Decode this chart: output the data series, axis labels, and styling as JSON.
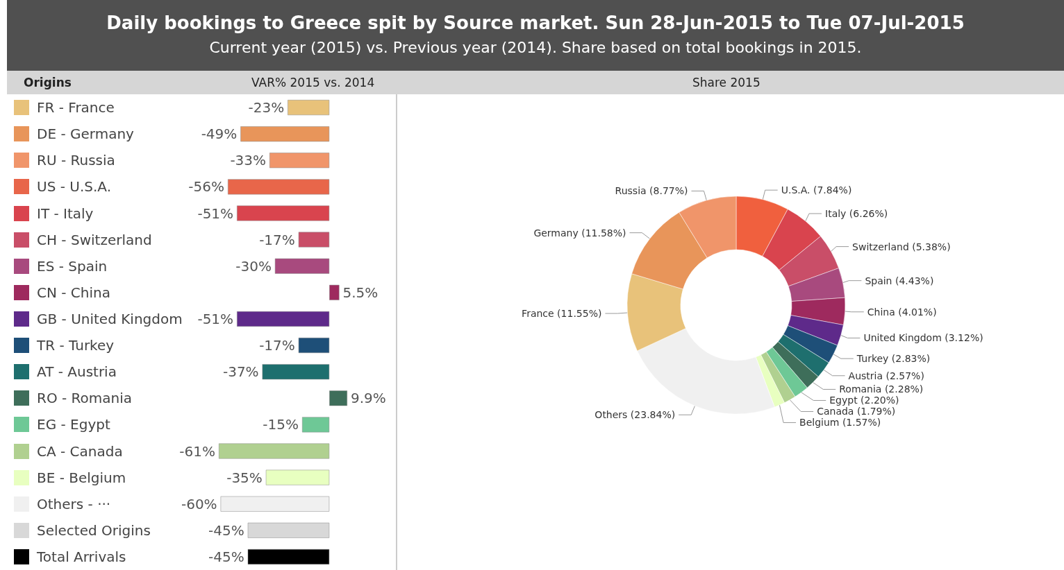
{
  "chart_data": [
    {
      "type": "bar",
      "orientation": "horizontal",
      "title": "Daily bookings to Greece spit by Source market. Sun 28-Jun-2015 to Tue 07-Jul-2015",
      "subtitle": "Current year (2015) vs. Previous year (2014). Share based on total bookings in 2015.",
      "ylabel": "Origins",
      "xlabel": "VAR% 2015 vs. 2014",
      "categories": [
        "FR - France",
        "DE - Germany",
        "RU - Russia",
        "US - U.S.A.",
        "IT - Italy",
        "CH - Switzerland",
        "ES - Spain",
        "CN - China",
        "GB - United Kingdom",
        "TR - Turkey",
        "AT - Austria",
        "RO - Romania",
        "EG - Egypt",
        "CA - Canada",
        "BE - Belgium",
        "Others - ···",
        "Selected Origins",
        "Total Arrivals"
      ],
      "values": [
        -23,
        -49,
        -33,
        -56,
        -51,
        -17,
        -30,
        5.5,
        -51,
        -17,
        -37,
        9.9,
        -15,
        -61,
        -35,
        -60,
        -45,
        -45
      ],
      "value_labels": [
        "-23%",
        "-49%",
        "-33%",
        "-56%",
        "-51%",
        "-17%",
        "-30%",
        "5.5%",
        "-51%",
        "-17%",
        "-37%",
        "9.9%",
        "-15%",
        "-61%",
        "-35%",
        "-60%",
        "-45%",
        "-45%"
      ],
      "colors": [
        "#e8c27a",
        "#e8955a",
        "#f0956a",
        "#e8664a",
        "#d9444e",
        "#c94e68",
        "#a84a7e",
        "#9e2a5e",
        "#5e2a8a",
        "#1e4f78",
        "#1e6f6e",
        "#3e6e5a",
        "#6ec896",
        "#b0d090",
        "#e8ffc0",
        "#f0f0f0",
        "#d8d8d8",
        "#000000"
      ]
    },
    {
      "type": "donut",
      "title": "Share 2015",
      "categories": [
        "U.S.A. (7.84%)",
        "Italy (6.26%)",
        "Switzerland (5.38%)",
        "Spain (4.43%)",
        "China (4.01%)",
        "United Kingdom (3.12%)",
        "Turkey (2.83%)",
        "Austria (2.57%)",
        "Romania (2.28%)",
        "Egypt (2.20%)",
        "Canada (1.79%)",
        "Belgium (1.57%)",
        "Others (23.84%)",
        "France (11.55%)",
        "Germany (11.58%)",
        "Russia (8.77%)"
      ],
      "values": [
        7.84,
        6.26,
        5.38,
        4.43,
        4.01,
        3.12,
        2.83,
        2.57,
        2.28,
        2.2,
        1.79,
        1.57,
        23.84,
        11.55,
        11.58,
        8.77
      ],
      "colors": [
        "#f0603e",
        "#d9444e",
        "#c94e68",
        "#a84a7e",
        "#9e2a5e",
        "#5e2a8a",
        "#1e4f78",
        "#1e6f6e",
        "#3e6e5a",
        "#6ec896",
        "#b0d090",
        "#e8ffc0",
        "#f0f0f0",
        "#e8c27a",
        "#e8955a",
        "#f0956a"
      ]
    }
  ]
}
